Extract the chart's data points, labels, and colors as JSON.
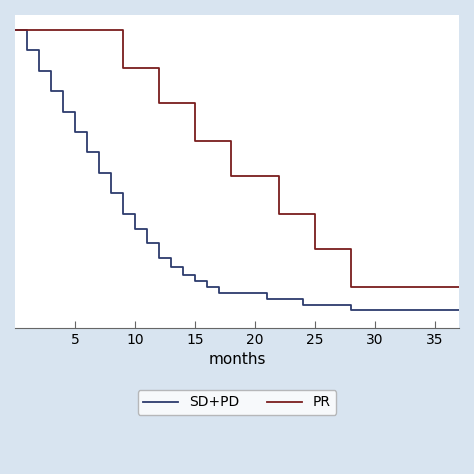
{
  "background_color": "#ffffff",
  "axis_bg_color": "#d8e4f0",
  "xlabel": "months",
  "xlim": [
    0,
    37
  ],
  "ylim": [
    -0.02,
    1.05
  ],
  "xticks": [
    5,
    10,
    15,
    20,
    25,
    30,
    35
  ],
  "grid_color": "#c8d8e8",
  "sd_pd_color": "#2d3b6d",
  "pr_color": "#7a1e1e",
  "sd_pd_label": "SD+PD",
  "pr_label": "PR",
  "sd_pd_times": [
    0,
    1,
    2,
    3,
    4,
    5,
    6,
    7,
    8,
    9,
    10,
    11,
    12,
    13,
    14,
    15,
    16,
    17,
    18,
    21,
    24,
    28,
    37
  ],
  "sd_pd_surv": [
    1.0,
    0.93,
    0.86,
    0.79,
    0.72,
    0.65,
    0.58,
    0.51,
    0.44,
    0.37,
    0.32,
    0.27,
    0.22,
    0.19,
    0.16,
    0.14,
    0.12,
    0.1,
    0.1,
    0.08,
    0.06,
    0.04,
    0.04
  ],
  "pr_times": [
    0,
    9,
    12,
    15,
    18,
    22,
    25,
    28,
    37
  ],
  "pr_surv": [
    1.0,
    0.87,
    0.75,
    0.62,
    0.5,
    0.37,
    0.25,
    0.12,
    0.12
  ],
  "figsize": [
    4.74,
    4.74
  ],
  "dpi": 100,
  "linewidth": 1.3,
  "legend_fontsize": 10,
  "xlabel_fontsize": 11
}
